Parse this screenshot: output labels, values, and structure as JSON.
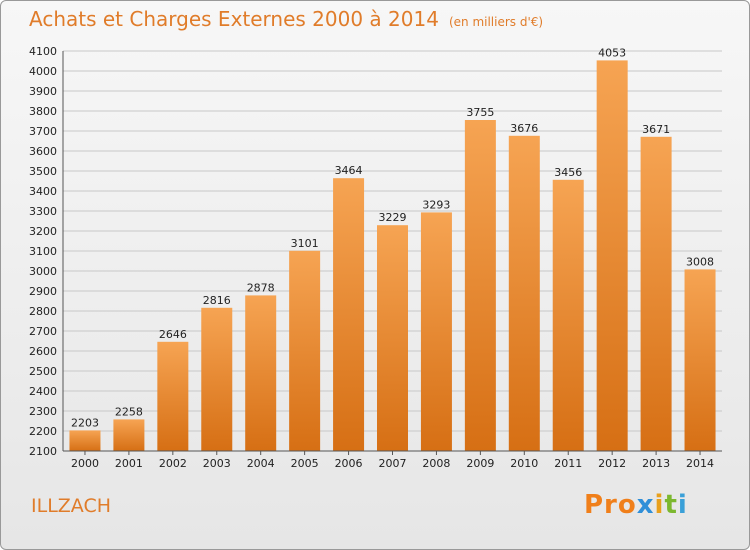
{
  "title": "Achats et Charges Externes 2000 à 2014",
  "subtitle": "(en milliers d'€)",
  "commune": "ILLZACH",
  "logo": {
    "parts": [
      "Pr",
      "o",
      "x",
      "i",
      "t",
      "i"
    ],
    "colors": [
      "#f07f1a",
      "#f07f1a",
      "#2f8fd8",
      "#e8a01c",
      "#7cb82f",
      "#3aa0d8"
    ]
  },
  "chart_data": {
    "type": "bar",
    "title": "Achats et Charges Externes 2000 à 2014",
    "subtitle": "(en milliers d'€)",
    "xlabel": "",
    "ylabel": "",
    "categories": [
      "2000",
      "2001",
      "2002",
      "2003",
      "2004",
      "2005",
      "2006",
      "2007",
      "2008",
      "2009",
      "2010",
      "2011",
      "2012",
      "2013",
      "2014"
    ],
    "values": [
      2203,
      2258,
      2646,
      2816,
      2878,
      3101,
      3464,
      3229,
      3293,
      3755,
      3676,
      3456,
      4053,
      3671,
      3008
    ],
    "ylim": [
      2100,
      4100
    ],
    "yticks": [
      2100,
      2200,
      2300,
      2400,
      2500,
      2600,
      2700,
      2800,
      2900,
      3000,
      3100,
      3200,
      3300,
      3400,
      3500,
      3600,
      3700,
      3800,
      3900,
      4000,
      4100
    ],
    "grid": true,
    "colors": {
      "bar_top": "#f6a453",
      "bar_bottom": "#d66f14",
      "title": "#e07c2a"
    }
  }
}
